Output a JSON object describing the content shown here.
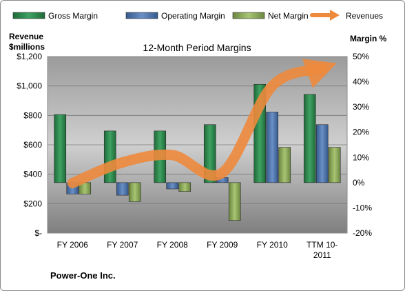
{
  "chart_data": {
    "type": "bar",
    "title": "12-Month Period Margins",
    "company": "Power-One Inc.",
    "categories": [
      "FY 2006",
      "FY 2007",
      "FY 2008",
      "FY 2009",
      "FY 2010",
      "TTM 10-2011"
    ],
    "category_lines": [
      [
        "FY 2006"
      ],
      [
        "FY 2007"
      ],
      [
        "FY 2008"
      ],
      [
        "FY 2009"
      ],
      [
        "FY 2010"
      ],
      [
        "TTM 10-",
        "2011"
      ]
    ],
    "left_axis": {
      "label_lines": [
        "Revenue",
        "$millions"
      ],
      "range": [
        0,
        1200
      ],
      "ticks": [
        0,
        200,
        400,
        600,
        800,
        1000,
        1200
      ],
      "tick_labels": [
        "$-",
        "$200",
        "$400",
        "$600",
        "$800",
        "$1,000",
        "$1,200"
      ]
    },
    "right_axis": {
      "label": "Margin %",
      "range": [
        -20,
        50
      ],
      "ticks": [
        -20,
        -10,
        0,
        10,
        20,
        30,
        40,
        50
      ],
      "tick_labels": [
        "-20%",
        "-10%",
        "0%",
        "10%",
        "20%",
        "30%",
        "40%",
        "50%"
      ]
    },
    "series": [
      {
        "name": "Gross Margin",
        "type": "bar",
        "axis": "right",
        "color": "#2e8b4e",
        "values": [
          27,
          20.5,
          20.5,
          23,
          39,
          35
        ]
      },
      {
        "name": "Operating Margin",
        "type": "bar",
        "axis": "right",
        "color": "#4a73ad",
        "values": [
          -4.5,
          -5,
          -2.5,
          2,
          28,
          23
        ]
      },
      {
        "name": "Net Margin",
        "type": "bar",
        "axis": "right",
        "color": "#86a552",
        "values": [
          -4.5,
          -7.5,
          -3.5,
          -15,
          14,
          14
        ]
      },
      {
        "name": "Revenues",
        "type": "line",
        "axis": "left",
        "color": "#ed8a3c",
        "values": [
          340,
          480,
          530,
          410,
          1000,
          1120
        ]
      }
    ],
    "grid": true,
    "legend": "top"
  }
}
